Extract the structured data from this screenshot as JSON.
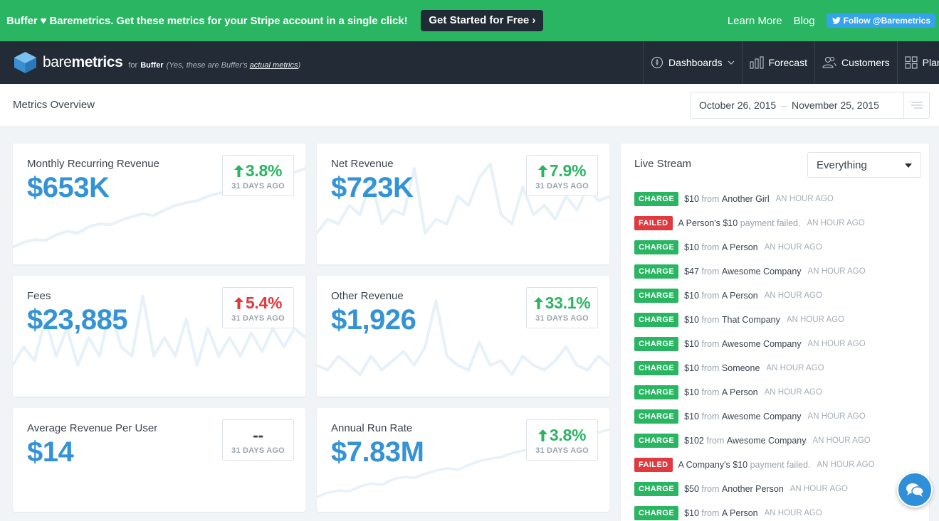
{
  "promo": {
    "text": "Buffer ♥ Baremetrics. Get these metrics for your Stripe account in a single click!",
    "cta": "Get Started for Free ›",
    "learn_more": "Learn More",
    "blog": "Blog",
    "twitter": "Follow @Baremetrics"
  },
  "nav": {
    "brand_light": "bare",
    "brand_bold": "metrics",
    "for": "for",
    "client": "Buffer",
    "note_prefix": "(Yes, these are Buffer's ",
    "note_link": "actual metrics",
    "note_suffix": ")",
    "items": [
      {
        "label": "Dashboards",
        "icon": "dashboard-icon"
      },
      {
        "label": "Forecast",
        "icon": "bar-chart-icon"
      },
      {
        "label": "Customers",
        "icon": "users-icon"
      },
      {
        "label": "Plans",
        "icon": "grid-icon"
      }
    ]
  },
  "subheader": {
    "title": "Metrics Overview",
    "date_start": "October 26, 2015",
    "date_sep": "–",
    "date_end": "November 25, 2015"
  },
  "metrics": [
    {
      "title": "Monthly Recurring Revenue",
      "value": "$653K",
      "delta": "3.8%",
      "direction": "up",
      "ago": "31 DAYS AGO",
      "trend": [
        0.05,
        0.1,
        0.13,
        0.12,
        0.18,
        0.22,
        0.2,
        0.27,
        0.3,
        0.29,
        0.34,
        0.38,
        0.41,
        0.39,
        0.45,
        0.5,
        0.53,
        0.55,
        0.6,
        0.63,
        0.66,
        0.7,
        0.72,
        0.77,
        0.8,
        0.83,
        0.86,
        0.9
      ]
    },
    {
      "title": "Net Revenue",
      "value": "$723K",
      "delta": "7.9%",
      "direction": "up",
      "ago": "31 DAYS AGO",
      "trend": [
        0.2,
        0.35,
        0.3,
        0.5,
        0.4,
        0.8,
        0.3,
        0.45,
        0.4,
        0.9,
        0.2,
        0.35,
        0.3,
        0.6,
        0.5,
        0.8,
        0.95,
        0.4,
        0.3,
        0.7,
        0.4,
        0.5,
        0.35,
        0.6,
        0.45,
        0.7,
        0.55,
        0.6
      ]
    },
    {
      "title": "Fees",
      "value": "$23,885",
      "delta": "5.4%",
      "direction": "down",
      "ago": "31 DAYS AGO",
      "trend": [
        0.2,
        0.4,
        0.25,
        0.7,
        0.3,
        0.6,
        0.2,
        0.5,
        0.3,
        0.8,
        0.4,
        0.3,
        0.95,
        0.3,
        0.5,
        0.3,
        0.7,
        0.2,
        0.6,
        0.3,
        0.5,
        0.3,
        0.55,
        0.35,
        0.6,
        0.4,
        0.6,
        0.5
      ]
    },
    {
      "title": "Other Revenue",
      "value": "$1,926",
      "delta": "33.1%",
      "direction": "up",
      "ago": "31 DAYS AGO",
      "trend": [
        0.2,
        0.15,
        0.3,
        0.2,
        0.1,
        0.3,
        0.15,
        0.25,
        0.35,
        0.2,
        0.4,
        0.9,
        0.3,
        0.2,
        0.15,
        0.45,
        0.2,
        0.25,
        0.1,
        0.3,
        0.2,
        0.15,
        0.25,
        0.4,
        0.2,
        0.15,
        0.3,
        0.2
      ]
    },
    {
      "title": "Average Revenue Per User",
      "value": "$14",
      "delta": "--",
      "direction": "flat",
      "ago": "31 DAYS AGO",
      "trend": []
    },
    {
      "title": "Annual Run Rate",
      "value": "$7.83M",
      "delta": "3.8%",
      "direction": "up",
      "ago": "31 DAYS AGO",
      "trend": [
        0.05,
        0.1,
        0.13,
        0.12,
        0.18,
        0.22,
        0.2,
        0.27,
        0.3,
        0.29,
        0.34,
        0.38,
        0.41,
        0.39,
        0.45,
        0.5,
        0.53,
        0.55,
        0.6,
        0.63,
        0.66,
        0.7,
        0.72,
        0.77,
        0.8,
        0.83,
        0.86,
        0.9
      ]
    }
  ],
  "stream": {
    "title": "Live Stream",
    "filter": "Everything",
    "events": [
      {
        "type": "CHARGE",
        "amount": "$10",
        "from": "from",
        "who": "Another Girl",
        "time": "AN HOUR AGO"
      },
      {
        "type": "FAILED",
        "amount": "A Person's $10",
        "from": "payment failed.",
        "who": "",
        "time": "AN HOUR AGO"
      },
      {
        "type": "CHARGE",
        "amount": "$10",
        "from": "from",
        "who": "A Person",
        "time": "AN HOUR AGO"
      },
      {
        "type": "CHARGE",
        "amount": "$47",
        "from": "from",
        "who": "Awesome Company",
        "time": "AN HOUR AGO"
      },
      {
        "type": "CHARGE",
        "amount": "$10",
        "from": "from",
        "who": "A Person",
        "time": "AN HOUR AGO"
      },
      {
        "type": "CHARGE",
        "amount": "$10",
        "from": "from",
        "who": "That Company",
        "time": "AN HOUR AGO"
      },
      {
        "type": "CHARGE",
        "amount": "$10",
        "from": "from",
        "who": "Awesome Company",
        "time": "AN HOUR AGO"
      },
      {
        "type": "CHARGE",
        "amount": "$10",
        "from": "from",
        "who": "Someone",
        "time": "AN HOUR AGO"
      },
      {
        "type": "CHARGE",
        "amount": "$10",
        "from": "from",
        "who": "A Person",
        "time": "AN HOUR AGO"
      },
      {
        "type": "CHARGE",
        "amount": "$10",
        "from": "from",
        "who": "Awesome Company",
        "time": "AN HOUR AGO"
      },
      {
        "type": "CHARGE",
        "amount": "$102",
        "from": "from",
        "who": "Awesome Company",
        "time": "AN HOUR AGO"
      },
      {
        "type": "FAILED",
        "amount": "A Company's $10",
        "from": "payment failed.",
        "who": "",
        "time": "AN HOUR AGO"
      },
      {
        "type": "CHARGE",
        "amount": "$50",
        "from": "from",
        "who": "Another Person",
        "time": "AN HOUR AGO"
      },
      {
        "type": "CHARGE",
        "amount": "$10",
        "from": "from",
        "who": "A Person",
        "time": "AN HOUR AGO"
      }
    ]
  },
  "colors": {
    "green": "#2ab563",
    "red": "#e0393e",
    "blue": "#3493d6",
    "navy": "#232c36"
  }
}
